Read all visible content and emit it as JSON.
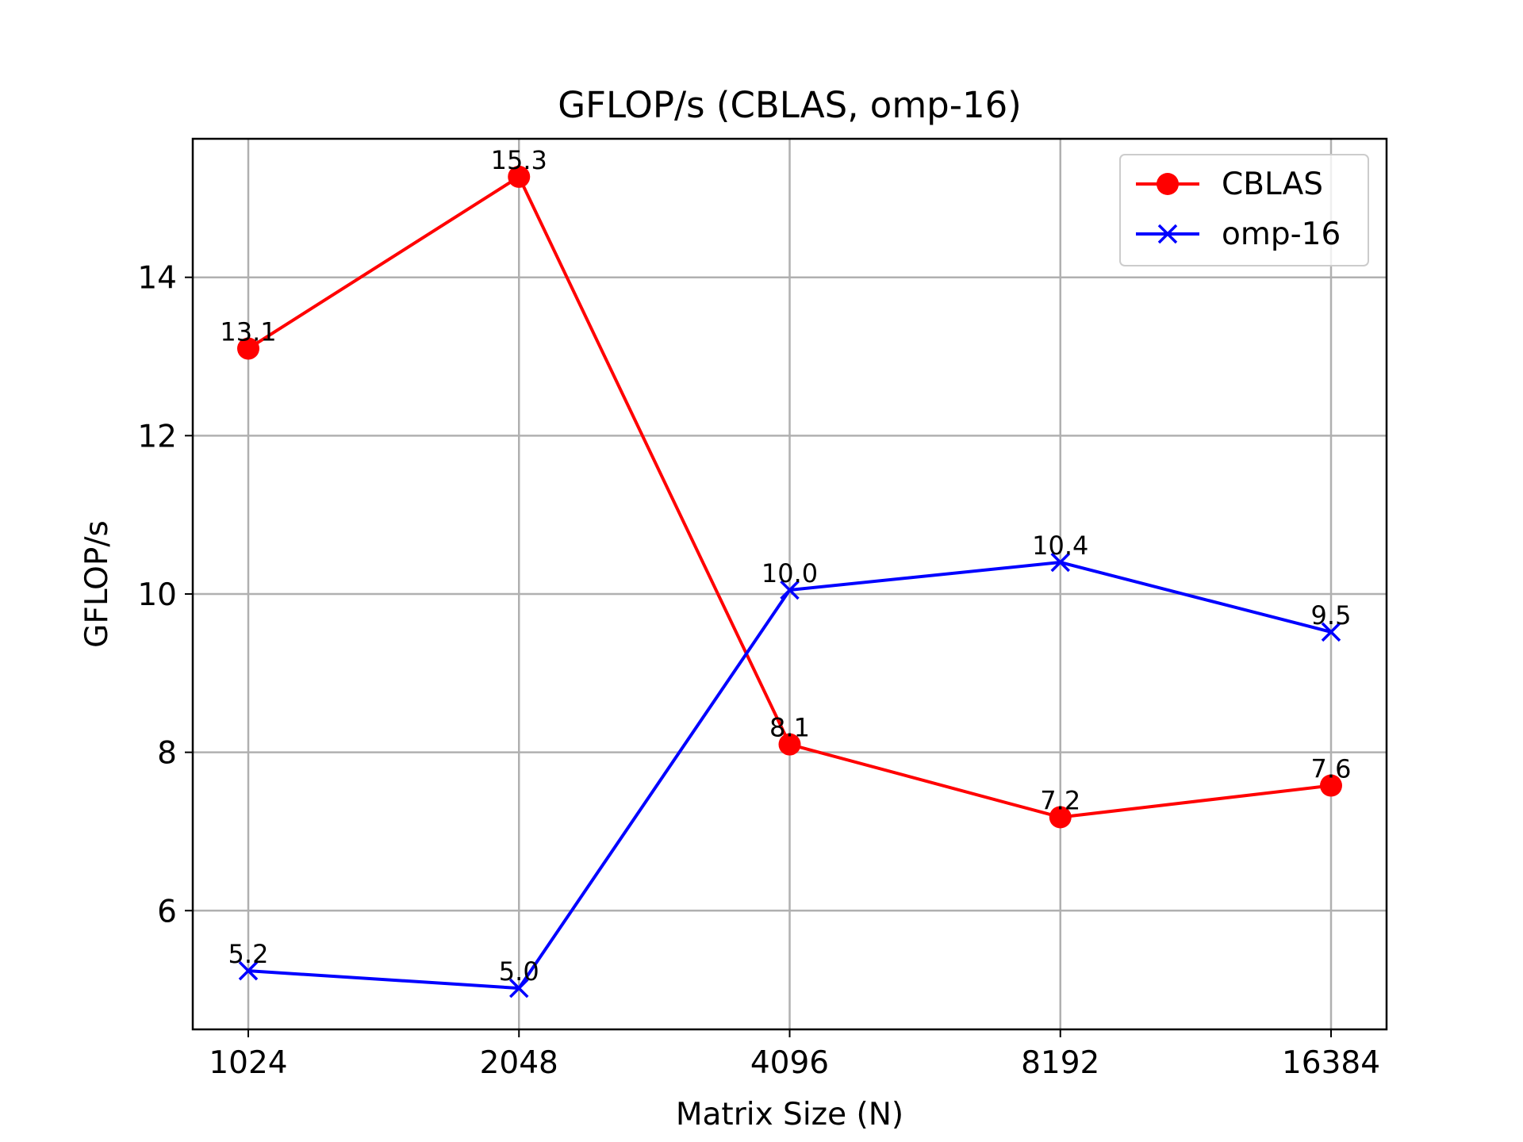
{
  "chart_data": {
    "type": "line",
    "title": "GFLOP/s (CBLAS, omp-16)",
    "xlabel": "Matrix Size (N)",
    "ylabel": "GFLOP/s",
    "categories": [
      "1024",
      "2048",
      "4096",
      "8192",
      "16384"
    ],
    "ylim": [
      4.5,
      15.75
    ],
    "yticks": [
      6,
      8,
      10,
      12,
      14
    ],
    "grid": true,
    "legend_position": "top-right",
    "series": [
      {
        "name": "CBLAS",
        "color": "#ff0000",
        "marker": "circle",
        "values": [
          13.1,
          15.27,
          8.1,
          7.18,
          7.58
        ],
        "labels": [
          "13.1",
          "15.3",
          "8.1",
          "7.2",
          "7.6"
        ]
      },
      {
        "name": "omp-16",
        "color": "#0000ff",
        "marker": "x",
        "values": [
          5.24,
          5.02,
          10.05,
          10.4,
          9.52
        ],
        "labels": [
          "5.2",
          "5.0",
          "10.0",
          "10.4",
          "9.5"
        ]
      }
    ]
  }
}
